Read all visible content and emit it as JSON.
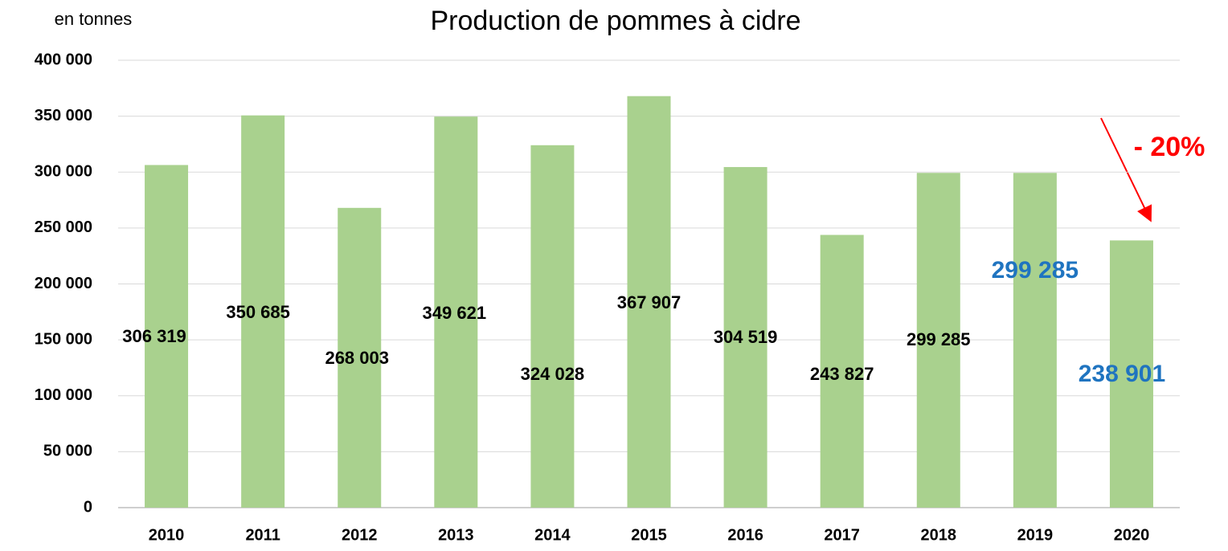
{
  "chart_data": {
    "type": "bar",
    "title": "Production de pommes à cidre",
    "unit_label": "en tonnes",
    "annotation": "- 20%",
    "categories": [
      "2010",
      "2011",
      "2012",
      "2013",
      "2014",
      "2015",
      "2016",
      "2017",
      "2018",
      "2019",
      "2020"
    ],
    "values": [
      306319,
      350685,
      268003,
      349621,
      324028,
      367907,
      304519,
      243827,
      299285,
      299285,
      238901
    ],
    "value_labels": [
      "306 319",
      "350 685",
      "268 003",
      "349 621",
      "324 028",
      "367 907",
      "304 519",
      "243 827",
      "299 285",
      "299 285",
      "238 901"
    ],
    "color": "#a9d18e",
    "ylim": [
      0,
      400000
    ],
    "yticks": [
      0,
      {
        "value": 50000,
        "label": "50 000"
      },
      {
        "value": 100000,
        "label": "100 000"
      },
      {
        "value": 150000,
        "label": "150 000"
      },
      {
        "value": 200000,
        "label": "200 000"
      },
      {
        "value": 250000,
        "label": "250 000"
      },
      {
        "value": 300000,
        "label": "300 000"
      },
      {
        "value": 350000,
        "label": "350 000"
      },
      {
        "value": 400000,
        "label": "400 000"
      }
    ],
    "grid": true
  }
}
